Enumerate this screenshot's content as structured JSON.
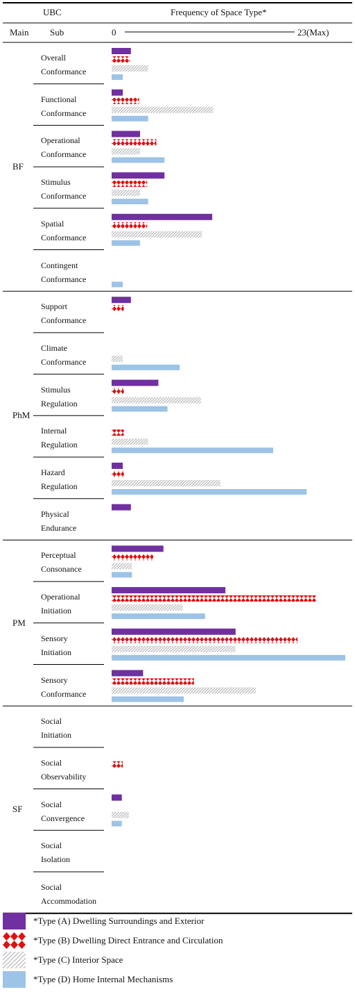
{
  "header": {
    "ubc_label": "UBC",
    "main_label": "Main",
    "sub_label": "Sub",
    "freq_label": "Frequency of Space Type*",
    "scale_min_label": "0",
    "scale_max_label": "23(Max)"
  },
  "colors": {
    "A": "#7030a0",
    "B": "#dd1111",
    "C": "#c0c0c0",
    "D": "#9dc3e6"
  },
  "legend": [
    {
      "key": "A",
      "label": "*Type (A) Dwelling Surroundings and Exterior"
    },
    {
      "key": "B",
      "label": "*Type (B) Dwelling Direct Entrance and Circulation"
    },
    {
      "key": "C",
      "label": "*Type (C) Interior Space"
    },
    {
      "key": "D",
      "label": "*Type (D) Home Internal Mechanisms"
    }
  ],
  "chart_data": {
    "type": "bar",
    "orientation": "horizontal",
    "xlim": [
      0,
      23
    ],
    "series": [
      {
        "name": "*Type (A) Dwelling Surroundings and Exterior",
        "key": "A"
      },
      {
        "name": "*Type (B) Dwelling Direct Entrance and Circulation",
        "key": "B"
      },
      {
        "name": "*Type (C) Interior Space",
        "key": "C"
      },
      {
        "name": "*Type (D) Home Internal Mechanisms",
        "key": "D"
      }
    ],
    "groups": [
      {
        "main": "BF",
        "subs": [
          {
            "label": [
              "Overall",
              "Conformance"
            ],
            "values": [
              1.9,
              1.8,
              3.6,
              1.1
            ]
          },
          {
            "label": [
              "Functional",
              "Conformance"
            ],
            "values": [
              1.1,
              2.7,
              10,
              3.6
            ]
          },
          {
            "label": [
              "Operational",
              "Conformance"
            ],
            "values": [
              2.8,
              4.4,
              2.8,
              5.2
            ]
          },
          {
            "label": [
              "Stimulus",
              "Conformance"
            ],
            "values": [
              5.2,
              3.5,
              2.8,
              3.6
            ]
          },
          {
            "label": [
              "Spatial",
              "Conformance"
            ],
            "values": [
              9.9,
              3.5,
              8.9,
              2.8
            ]
          },
          {
            "label": [
              "Contingent",
              "Conformance"
            ],
            "values": [
              0,
              0,
              0,
              1.1
            ]
          }
        ]
      },
      {
        "main": "PhM",
        "subs": [
          {
            "label": [
              "Support",
              "Conformance"
            ],
            "values": [
              1.9,
              1.2,
              0,
              0
            ]
          },
          {
            "label": [
              "Climate",
              "Conformance"
            ],
            "values": [
              0,
              0,
              1.1,
              6.7
            ]
          },
          {
            "label": [
              "Stimulus",
              "Regulation"
            ],
            "values": [
              4.6,
              1.2,
              8.8,
              5.5
            ]
          },
          {
            "label": [
              "Internal",
              "Regulation"
            ],
            "values": [
              0,
              1.2,
              3.6,
              15.9
            ]
          },
          {
            "label": [
              "Hazard",
              "Regulation"
            ],
            "values": [
              1.1,
              1.2,
              10.7,
              19.2
            ]
          },
          {
            "label": [
              "Physical",
              "Endurance"
            ],
            "values": [
              1.9,
              0,
              0,
              0
            ]
          }
        ]
      },
      {
        "main": "PM",
        "subs": [
          {
            "label": [
              "Perceptual",
              "Consonance"
            ],
            "values": [
              5.1,
              4.1,
              2,
              2
            ]
          },
          {
            "label": [
              "Operational",
              "Initiation"
            ],
            "values": [
              11.2,
              20.1,
              7,
              9.2
            ]
          },
          {
            "label": [
              "Sensory",
              "Initiation"
            ],
            "values": [
              12.2,
              18.3,
              12.2,
              23
            ]
          },
          {
            "label": [
              "Sensory",
              "Conformance"
            ],
            "values": [
              3.1,
              8.1,
              14.2,
              7.1
            ]
          }
        ]
      },
      {
        "main": "SF",
        "subs": [
          {
            "label": [
              "Social",
              "Initiation"
            ],
            "values": [
              0,
              0,
              0,
              0
            ]
          },
          {
            "label": [
              "Social",
              "Observability"
            ],
            "values": [
              0,
              1.1,
              0,
              0
            ]
          },
          {
            "label": [
              "Social",
              "Convergence"
            ],
            "values": [
              1,
              0,
              1.7,
              1
            ]
          },
          {
            "label": [
              "Social",
              "Isolation"
            ],
            "values": [
              0,
              0,
              0,
              0
            ]
          },
          {
            "label": [
              "Social",
              "Accommodation"
            ],
            "values": [
              0,
              0,
              0,
              0
            ]
          }
        ]
      }
    ]
  }
}
